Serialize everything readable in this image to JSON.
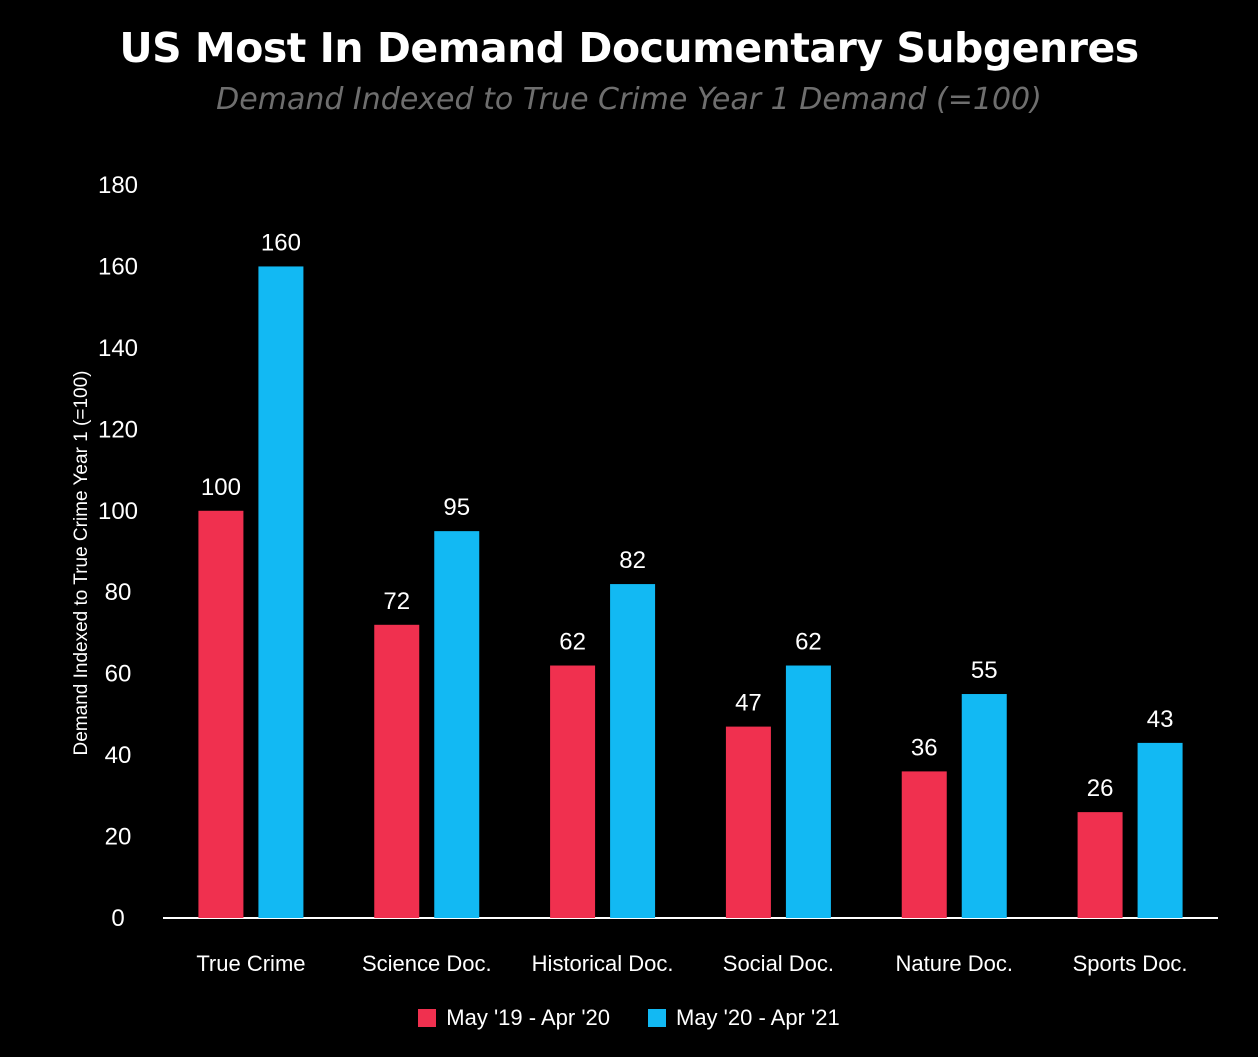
{
  "title": "US Most In Demand Documentary Subgenres",
  "subtitle": "Demand Indexed to True Crime Year 1 Demand (=100)",
  "colors": {
    "series_1": "#f0304f",
    "series_2": "#12b9f3",
    "axis": "#ffffff"
  },
  "chart_data": {
    "type": "bar",
    "categories": [
      "True Crime",
      "Science Doc.",
      "Historical Doc.",
      "Social Doc.",
      "Nature Doc.",
      "Sports Doc."
    ],
    "series": [
      {
        "name": "May '19 - Apr '20",
        "values": [
          100,
          72,
          62,
          47,
          36,
          26
        ]
      },
      {
        "name": "May '20 - Apr '21",
        "values": [
          160,
          95,
          82,
          62,
          55,
          43
        ]
      }
    ],
    "ylabel": "Demand Indexed to True Crime Year 1 (=100)",
    "xlabel": "",
    "ylim": [
      0,
      180
    ],
    "yticks": [
      0,
      20,
      40,
      60,
      80,
      100,
      120,
      140,
      160,
      180
    ],
    "grid": false,
    "legend_position": "bottom"
  }
}
